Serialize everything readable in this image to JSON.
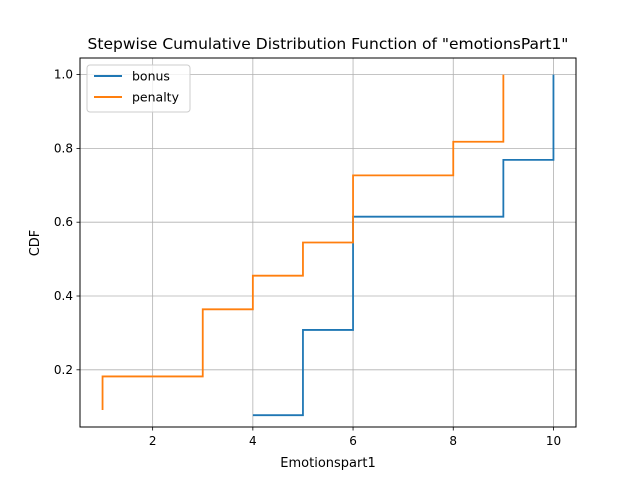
{
  "chart_data": {
    "type": "line",
    "title": "Stepwise Cumulative Distribution Function of \"emotionsPart1\"",
    "xlabel": "Emotionspart1",
    "ylabel": "CDF",
    "xlim": [
      0.55,
      10.45
    ],
    "ylim": [
      0.045,
      1.045
    ],
    "xticks": [
      2,
      4,
      6,
      8,
      10
    ],
    "yticks": [
      0.2,
      0.4,
      0.6,
      0.8,
      1.0
    ],
    "xtick_labels": [
      "2",
      "4",
      "6",
      "8",
      "10"
    ],
    "ytick_labels": [
      "0.2",
      "0.4",
      "0.6",
      "0.8",
      "1.0"
    ],
    "grid": true,
    "legend_position": "top-left",
    "step": "post",
    "series": [
      {
        "name": "bonus",
        "color": "#1f77b4",
        "x": [
          4,
          5,
          6,
          9,
          10
        ],
        "y": [
          0.077,
          0.308,
          0.615,
          0.769,
          1.0
        ]
      },
      {
        "name": "penalty",
        "color": "#ff7f0e",
        "x": [
          1,
          1,
          3,
          4,
          5,
          6,
          8,
          9
        ],
        "y": [
          0.091,
          0.182,
          0.364,
          0.455,
          0.545,
          0.727,
          0.818,
          1.0
        ]
      }
    ]
  }
}
